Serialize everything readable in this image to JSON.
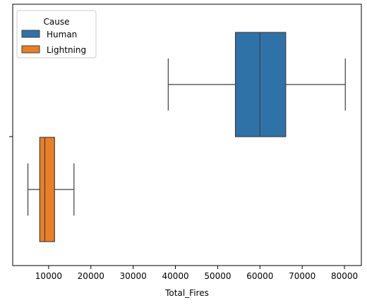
{
  "chart_data": {
    "type": "boxplot",
    "orientation": "horizontal",
    "xlabel": "Total_Fires",
    "ylabel": "",
    "xlim": [
      1500,
      84000
    ],
    "xticks": [
      10000,
      20000,
      30000,
      40000,
      50000,
      60000,
      70000,
      80000
    ],
    "xtick_labels": [
      "10000",
      "20000",
      "30000",
      "40000",
      "50000",
      "60000",
      "70000",
      "80000"
    ],
    "grid": false,
    "legend": {
      "title": "Cause",
      "placement": "upper-left",
      "entries": [
        "Human",
        "Lightning"
      ]
    },
    "series": [
      {
        "name": "Human",
        "color": "#2f72a8",
        "whisker_low": 38300,
        "q1": 54200,
        "median": 60000,
        "q3": 66100,
        "whisker_high": 80200
      },
      {
        "name": "Lightning",
        "color": "#ea7f26",
        "whisker_low": 5100,
        "q1": 7900,
        "median": 9100,
        "q3": 11400,
        "whisker_high": 16000
      }
    ]
  }
}
